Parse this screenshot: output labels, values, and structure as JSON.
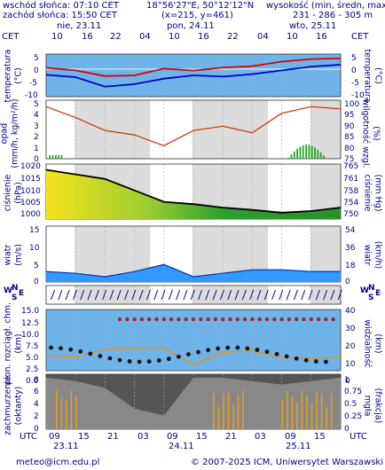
{
  "header": {
    "sunrise": "wschód słońca: 07:10 CET",
    "sunset": "zachód słońca: 15:50 CET",
    "coords": "18°56'27\"E, 50°12'12\"N",
    "grid": "(x=215, y=461)",
    "elev_label": "wysokość (min, średn, max)",
    "elev_values": "231 - 286 - 305 m"
  },
  "timeline": {
    "top_tz": "CET",
    "days_top": [
      "nie, 23.11",
      "pon, 24.11",
      "wto, 25.11"
    ],
    "hours_top": [
      "10",
      "16",
      "22",
      "04",
      "10",
      "16",
      "22",
      "04",
      "10",
      "16"
    ],
    "bottom_tz": "UTC",
    "hours_bottom": [
      "09",
      "15",
      "21",
      "03",
      "09",
      "15",
      "21",
      "03",
      "09",
      "15"
    ],
    "days_bottom": [
      "23.11",
      "24.11",
      "25.11"
    ]
  },
  "panels": {
    "temperature": {
      "left": "temperatura",
      "left_unit": "(°C)",
      "right": "temperatura",
      "right_unit": "(°C)",
      "ticks_left": [
        "5",
        "0",
        "-5",
        "-10"
      ],
      "ticks_right": [
        "5",
        "0",
        "-5",
        "-10"
      ]
    },
    "precip": {
      "left": "opad",
      "left_unit": "(mm/h, kg/m²/h)",
      "right": "wilgotność wzgl.",
      "right_unit": "(%)",
      "ticks_left": [
        "5",
        "4",
        "3",
        "2",
        "1",
        "0"
      ],
      "ticks_right": [
        "100",
        "95",
        "90",
        "85",
        "80",
        "75"
      ]
    },
    "pressure": {
      "left": "ciśnienie",
      "left_unit": "(hPa)",
      "right": "ciśnienie",
      "right_unit": "(mm Hg)",
      "ticks_left": [
        "1020",
        "1015",
        "1010",
        "1005",
        "1000"
      ],
      "ticks_right": [
        "765",
        "761",
        "758",
        "754",
        "750"
      ]
    },
    "wind": {
      "left": "wiatr",
      "left_unit": "(m/s)",
      "right": "wiatr",
      "right_unit": "(km/h)",
      "ticks_left": [
        "15",
        "10",
        "5",
        "0"
      ],
      "ticks_right": [
        "54",
        "36",
        "18",
        "0"
      ]
    },
    "winddir": {
      "compass": [
        "W",
        "N",
        "S",
        "E"
      ]
    },
    "visibility": {
      "left": "pion. rozciągł. chm.",
      "left_unit": "(km)",
      "right": "widzialność",
      "right_unit": "(km)",
      "ticks_left": [
        "15.0",
        "12.5",
        "10.0",
        "7.5",
        "5.0",
        "2.5",
        "0.0"
      ],
      "ticks_right": [
        "40",
        "30",
        "20",
        "10",
        "0"
      ]
    },
    "clouds": {
      "left": "zachmurzenie",
      "left_unit": "(oktanty)",
      "right": "mgła",
      "right_unit": "(frakcja)",
      "ticks_left": [
        "8",
        "6",
        "4",
        "2",
        "0"
      ],
      "ticks_right": [
        "1",
        "0.75",
        "0.5",
        "0.25",
        "0"
      ]
    }
  },
  "footer": {
    "email": "meteo@icm.edu.pl",
    "copyright": "© 2007-2025 ICM, Uniwersytet Warszawski"
  },
  "colors": {
    "text": "#00008b",
    "temp_max": "#dd0000",
    "temp_mean": "#0000cc",
    "humidity": "#cc3300",
    "precip": "#22aa22",
    "pressure": "#000000",
    "wind_fill": "#3399ff",
    "vis_line": "#ff8800"
  },
  "chart_data": [
    {
      "type": "line",
      "title": "temperatura",
      "x_hours_from_start": [
        0,
        6,
        12,
        18,
        24,
        30,
        36,
        42,
        48,
        54,
        60
      ],
      "series": [
        {
          "values": [
            0.5,
            -0.5,
            -2.8,
            -2.5,
            0.2,
            -0.6,
            0.6,
            1.2,
            3.0,
            4.0,
            4.3
          ]
        },
        {
          "values": [
            -2.3,
            -3.2,
            -7.0,
            -6.0,
            -3.8,
            -2.5,
            -3.0,
            -2.0,
            -0.5,
            1.0,
            1.8
          ]
        }
      ],
      "ylim": [
        -11,
        6
      ]
    },
    {
      "type": "line",
      "title": "wilgotność wzgl.",
      "x_hours_from_start": [
        0,
        6,
        12,
        18,
        24,
        30,
        36,
        42,
        48,
        54,
        60
      ],
      "values": [
        99,
        94,
        88,
        86,
        81,
        88,
        90,
        87,
        96,
        99,
        98
      ],
      "ylim": [
        75,
        102
      ]
    },
    {
      "type": "line",
      "title": "ciśnienie",
      "x_hours_from_start": [
        0,
        6,
        12,
        18,
        24,
        30,
        36,
        42,
        48,
        54,
        60
      ],
      "values": [
        1018.5,
        1016.5,
        1014.5,
        1009.5,
        1004.5,
        1003.5,
        1002.0,
        1001.0,
        999.8,
        1000.5,
        1002.0
      ],
      "ylim": [
        997,
        1021
      ]
    },
    {
      "type": "area",
      "title": "wiatr",
      "x_hours_from_start": [
        0,
        6,
        12,
        18,
        24,
        30,
        36,
        42,
        48,
        54,
        60
      ],
      "values": [
        3.0,
        2.5,
        1.5,
        3.0,
        5.0,
        1.5,
        2.5,
        3.5,
        3.5,
        3.0,
        3.0
      ],
      "ylim": [
        0,
        16
      ]
    }
  ]
}
